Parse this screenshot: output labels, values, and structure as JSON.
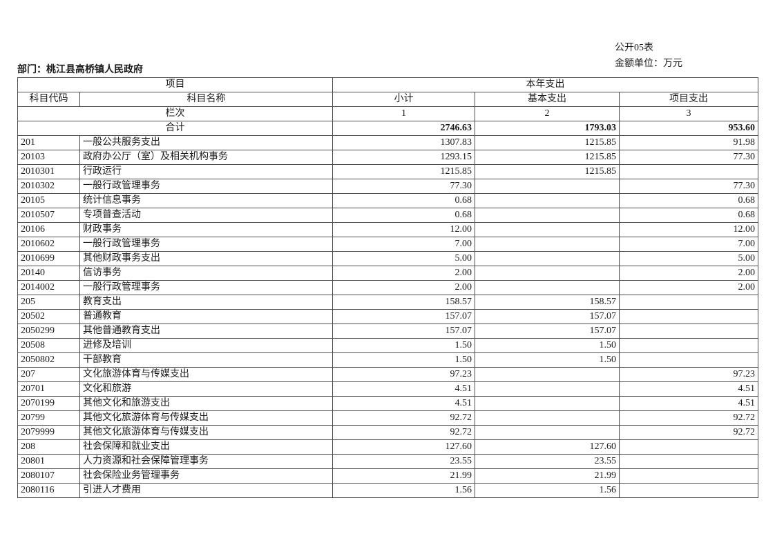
{
  "page": {
    "form_number": "公开05表",
    "unit_label": "金额单位：万元",
    "department": "部门：桃江县高桥镇人民政府"
  },
  "table": {
    "header": {
      "project": "项目",
      "current_year_expenditure": "本年支出",
      "subject_code": "科目代码",
      "subject_name": "科目名称",
      "subtotal": "小计",
      "basic_expenditure": "基本支出",
      "project_expenditure": "项目支出",
      "column_index_label": "栏次",
      "column_indexes": [
        "1",
        "2",
        "3"
      ]
    },
    "total_row": {
      "label": "合计",
      "subtotal": "2746.63",
      "basic": "1793.03",
      "project": "953.60"
    },
    "rows": [
      {
        "code": "201",
        "name": "一般公共服务支出",
        "subtotal": "1307.83",
        "basic": "1215.85",
        "project": "91.98"
      },
      {
        "code": "20103",
        "name": "政府办公厅（室）及相关机构事务",
        "subtotal": "1293.15",
        "basic": "1215.85",
        "project": "77.30"
      },
      {
        "code": "2010301",
        "name": "行政运行",
        "subtotal": "1215.85",
        "basic": "1215.85",
        "project": ""
      },
      {
        "code": "2010302",
        "name": "一般行政管理事务",
        "subtotal": "77.30",
        "basic": "",
        "project": "77.30"
      },
      {
        "code": "20105",
        "name": "统计信息事务",
        "subtotal": "0.68",
        "basic": "",
        "project": "0.68"
      },
      {
        "code": "2010507",
        "name": "专项普查活动",
        "subtotal": "0.68",
        "basic": "",
        "project": "0.68"
      },
      {
        "code": "20106",
        "name": "财政事务",
        "subtotal": "12.00",
        "basic": "",
        "project": "12.00"
      },
      {
        "code": "2010602",
        "name": "一般行政管理事务",
        "subtotal": "7.00",
        "basic": "",
        "project": "7.00"
      },
      {
        "code": "2010699",
        "name": "其他财政事务支出",
        "subtotal": "5.00",
        "basic": "",
        "project": "5.00"
      },
      {
        "code": "20140",
        "name": "信访事务",
        "subtotal": "2.00",
        "basic": "",
        "project": "2.00"
      },
      {
        "code": "2014002",
        "name": "一般行政管理事务",
        "subtotal": "2.00",
        "basic": "",
        "project": "2.00"
      },
      {
        "code": "205",
        "name": "教育支出",
        "subtotal": "158.57",
        "basic": "158.57",
        "project": ""
      },
      {
        "code": "20502",
        "name": "普通教育",
        "subtotal": "157.07",
        "basic": "157.07",
        "project": ""
      },
      {
        "code": "2050299",
        "name": "其他普通教育支出",
        "subtotal": "157.07",
        "basic": "157.07",
        "project": ""
      },
      {
        "code": "20508",
        "name": "进修及培训",
        "subtotal": "1.50",
        "basic": "1.50",
        "project": ""
      },
      {
        "code": "2050802",
        "name": "干部教育",
        "subtotal": "1.50",
        "basic": "1.50",
        "project": ""
      },
      {
        "code": "207",
        "name": "文化旅游体育与传媒支出",
        "subtotal": "97.23",
        "basic": "",
        "project": "97.23"
      },
      {
        "code": "20701",
        "name": "文化和旅游",
        "subtotal": "4.51",
        "basic": "",
        "project": "4.51"
      },
      {
        "code": "2070199",
        "name": "其他文化和旅游支出",
        "subtotal": "4.51",
        "basic": "",
        "project": "4.51"
      },
      {
        "code": "20799",
        "name": "其他文化旅游体育与传媒支出",
        "subtotal": "92.72",
        "basic": "",
        "project": "92.72"
      },
      {
        "code": "2079999",
        "name": "其他文化旅游体育与传媒支出",
        "subtotal": "92.72",
        "basic": "",
        "project": "92.72"
      },
      {
        "code": "208",
        "name": "社会保障和就业支出",
        "subtotal": "127.60",
        "basic": "127.60",
        "project": ""
      },
      {
        "code": "20801",
        "name": "人力资源和社会保障管理事务",
        "subtotal": "23.55",
        "basic": "23.55",
        "project": ""
      },
      {
        "code": "2080107",
        "name": "社会保险业务管理事务",
        "subtotal": "21.99",
        "basic": "21.99",
        "project": ""
      },
      {
        "code": "2080116",
        "name": "引进人才费用",
        "subtotal": "1.56",
        "basic": "1.56",
        "project": ""
      }
    ]
  }
}
